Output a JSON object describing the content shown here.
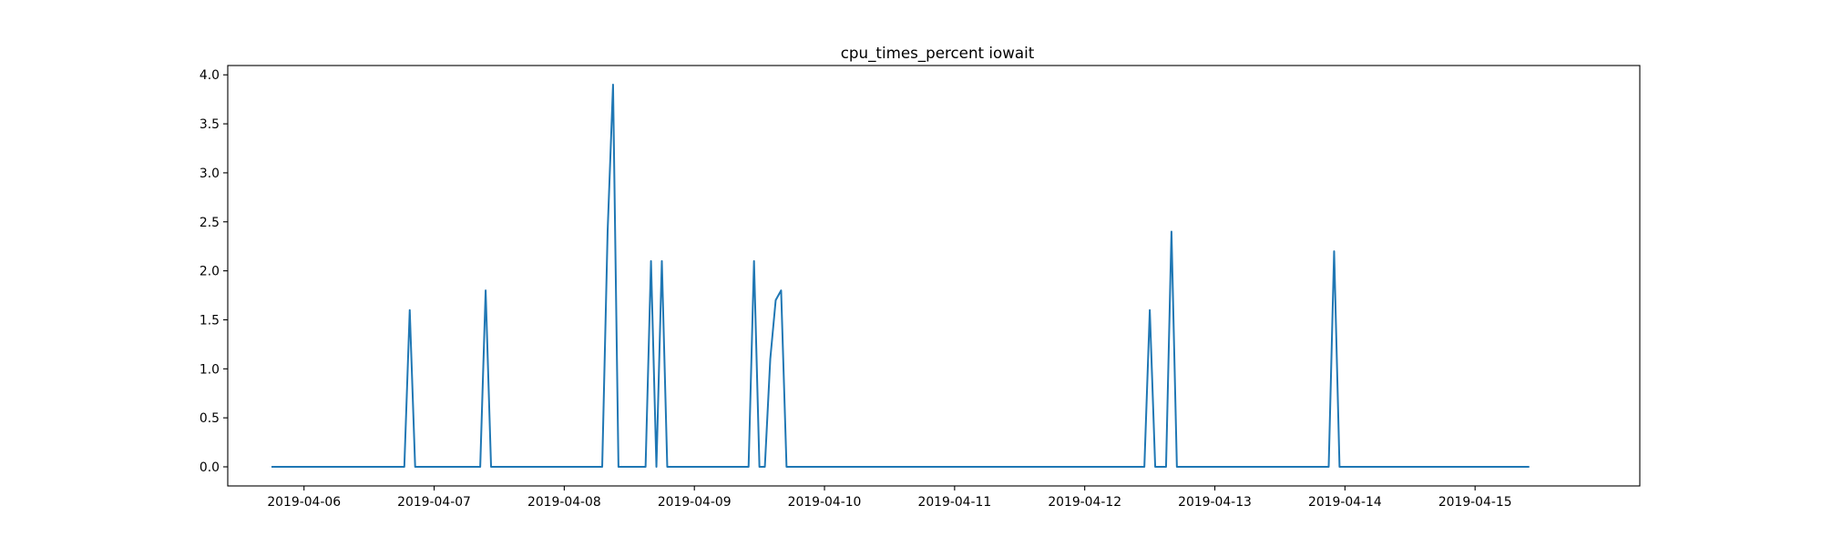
{
  "chart_data": {
    "type": "line",
    "title": "cpu_times_percent iowait",
    "xlabel": "",
    "ylabel": "",
    "x_axis_type": "date",
    "xlim": [
      "2019-04-05T09:56",
      "2019-04-16T06:23"
    ],
    "ylim": [
      -0.195,
      4.095
    ],
    "x_ticks": [
      "2019-04-06",
      "2019-04-07",
      "2019-04-08",
      "2019-04-09",
      "2019-04-10",
      "2019-04-11",
      "2019-04-12",
      "2019-04-13",
      "2019-04-14",
      "2019-04-15"
    ],
    "y_ticks": [
      "0.0",
      "0.5",
      "1.0",
      "1.5",
      "2.0",
      "2.5",
      "3.0",
      "3.5",
      "4.0"
    ],
    "grid": false,
    "legend": "none",
    "series": [
      {
        "color": "#1f77b4",
        "points": [
          {
            "x": "2019-04-05T18:00",
            "y": 0.0
          },
          {
            "x": "2019-04-06T18:30",
            "y": 0.0
          },
          {
            "x": "2019-04-06T19:30",
            "y": 1.6
          },
          {
            "x": "2019-04-06T20:30",
            "y": 0.0
          },
          {
            "x": "2019-04-07T08:30",
            "y": 0.0
          },
          {
            "x": "2019-04-07T09:30",
            "y": 1.8
          },
          {
            "x": "2019-04-07T10:30",
            "y": 0.0
          },
          {
            "x": "2019-04-08T07:00",
            "y": 0.0
          },
          {
            "x": "2019-04-08T08:00",
            "y": 2.4
          },
          {
            "x": "2019-04-08T09:00",
            "y": 3.9
          },
          {
            "x": "2019-04-08T10:00",
            "y": 0.0
          },
          {
            "x": "2019-04-08T15:00",
            "y": 0.0
          },
          {
            "x": "2019-04-08T16:00",
            "y": 2.1
          },
          {
            "x": "2019-04-08T17:00",
            "y": 0.0
          },
          {
            "x": "2019-04-08T18:00",
            "y": 2.1
          },
          {
            "x": "2019-04-08T19:00",
            "y": 0.0
          },
          {
            "x": "2019-04-09T10:00",
            "y": 0.0
          },
          {
            "x": "2019-04-09T11:00",
            "y": 2.1
          },
          {
            "x": "2019-04-09T12:00",
            "y": 0.0
          },
          {
            "x": "2019-04-09T13:00",
            "y": 0.0
          },
          {
            "x": "2019-04-09T14:00",
            "y": 1.1
          },
          {
            "x": "2019-04-09T15:00",
            "y": 1.7
          },
          {
            "x": "2019-04-09T16:00",
            "y": 1.8
          },
          {
            "x": "2019-04-09T17:00",
            "y": 0.0
          },
          {
            "x": "2019-04-12T11:00",
            "y": 0.0
          },
          {
            "x": "2019-04-12T12:00",
            "y": 1.6
          },
          {
            "x": "2019-04-12T13:00",
            "y": 0.0
          },
          {
            "x": "2019-04-12T15:00",
            "y": 0.0
          },
          {
            "x": "2019-04-12T16:00",
            "y": 2.4
          },
          {
            "x": "2019-04-12T17:00",
            "y": 0.0
          },
          {
            "x": "2019-04-13T21:00",
            "y": 0.0
          },
          {
            "x": "2019-04-13T22:00",
            "y": 2.2
          },
          {
            "x": "2019-04-13T23:00",
            "y": 0.0
          },
          {
            "x": "2019-04-15T10:00",
            "y": 0.0
          }
        ]
      }
    ]
  }
}
